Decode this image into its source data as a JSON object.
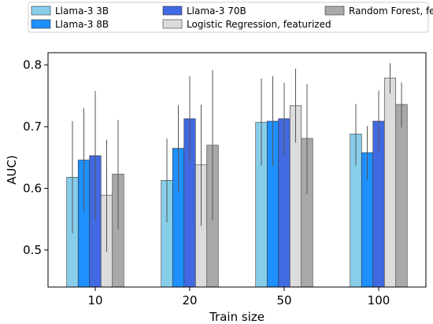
{
  "chart_data": {
    "type": "bar",
    "xlabel": "Train size",
    "ylabel": "AUC)",
    "ylim": [
      0.44,
      0.82
    ],
    "yticks": [
      0.5,
      0.6,
      0.7,
      0.8
    ],
    "ytick_labels": [
      "0.5",
      "0.6",
      "0.7",
      "0.8"
    ],
    "categories": [
      "10",
      "20",
      "50",
      "100"
    ],
    "legend_position": "top",
    "grid": false,
    "error_bars": true,
    "series": [
      {
        "name": "Llama-3 3B",
        "color": "#87ceeb",
        "values": [
          0.618,
          0.613,
          0.707,
          0.688
        ],
        "err_low": [
          0.527,
          0.545,
          0.637,
          0.637
        ],
        "err_high": [
          0.709,
          0.681,
          0.778,
          0.737
        ]
      },
      {
        "name": "Llama-3 8B",
        "color": "#1e90ff",
        "values": [
          0.646,
          0.665,
          0.709,
          0.658
        ],
        "err_low": [
          0.563,
          0.593,
          0.636,
          0.614
        ],
        "err_high": [
          0.73,
          0.735,
          0.782,
          0.701
        ]
      },
      {
        "name": "Llama-3 70B",
        "color": "#4169e1",
        "values": [
          0.653,
          0.713,
          0.713,
          0.709
        ],
        "err_low": [
          0.548,
          0.643,
          0.654,
          0.66
        ],
        "err_high": [
          0.758,
          0.782,
          0.771,
          0.759
        ]
      },
      {
        "name": "Logistic Regression, featurized",
        "color": "#dcdcdc",
        "values": [
          0.589,
          0.638,
          0.734,
          0.779
        ],
        "err_low": [
          0.497,
          0.539,
          0.674,
          0.754
        ],
        "err_high": [
          0.679,
          0.736,
          0.794,
          0.803
        ]
      },
      {
        "name": "Random Forest, featurized",
        "color": "#a9a9a9",
        "values": [
          0.623,
          0.67,
          0.681,
          0.736
        ],
        "err_low": [
          0.533,
          0.548,
          0.591,
          0.699
        ],
        "err_high": [
          0.711,
          0.792,
          0.769,
          0.772
        ]
      }
    ]
  }
}
